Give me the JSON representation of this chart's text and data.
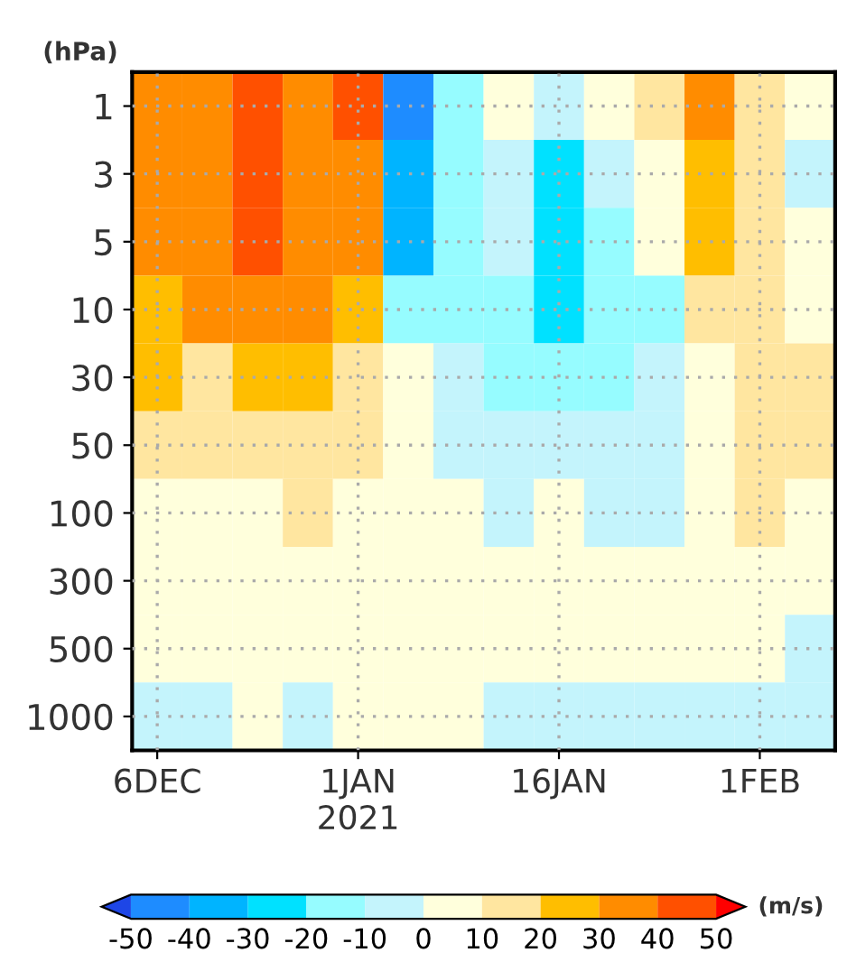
{
  "chart_data": {
    "type": "heatmap",
    "ylabel": "(hPa)",
    "clabel": "(m/s)",
    "categories": [
      "6DEC",
      null,
      null,
      null,
      "1JAN\n2021",
      null,
      null,
      null,
      "16JAN",
      null,
      null,
      null,
      "1FEB",
      null
    ],
    "y_categories": [
      "1",
      "3",
      "5",
      "10",
      "30",
      "50",
      "100",
      "300",
      "500",
      "1000"
    ],
    "cells": [
      [
        35,
        35,
        45,
        35,
        45,
        -45,
        -15,
        5,
        -5,
        5,
        15,
        35,
        15,
        5
      ],
      [
        35,
        35,
        45,
        35,
        35,
        -35,
        -15,
        -5,
        -25,
        -5,
        5,
        25,
        15,
        -5
      ],
      [
        35,
        35,
        45,
        35,
        35,
        -35,
        -15,
        -5,
        -25,
        -15,
        5,
        25,
        15,
        5
      ],
      [
        25,
        35,
        35,
        35,
        25,
        -15,
        -15,
        -15,
        -25,
        -15,
        -15,
        15,
        15,
        5
      ],
      [
        25,
        15,
        25,
        25,
        15,
        5,
        -5,
        -15,
        -15,
        -15,
        -5,
        5,
        15,
        15
      ],
      [
        15,
        15,
        15,
        15,
        15,
        5,
        -5,
        -5,
        -5,
        -5,
        -5,
        5,
        15,
        15
      ],
      [
        5,
        5,
        5,
        15,
        5,
        5,
        5,
        -5,
        5,
        -5,
        -5,
        5,
        15,
        5
      ],
      [
        5,
        5,
        5,
        5,
        5,
        5,
        5,
        5,
        5,
        5,
        5,
        5,
        5,
        5
      ],
      [
        5,
        5,
        5,
        5,
        5,
        5,
        5,
        5,
        5,
        5,
        5,
        5,
        5,
        -5
      ],
      [
        -5,
        -5,
        5,
        -5,
        5,
        5,
        5,
        -5,
        -5,
        -5,
        -5,
        -5,
        -5,
        -5
      ]
    ],
    "cticks": [
      -50,
      -40,
      -30,
      -20,
      -10,
      0,
      10,
      20,
      30,
      40,
      50
    ],
    "colors": [
      "#1e46e6",
      "#1e8cff",
      "#00b4ff",
      "#00e1ff",
      "#96fcff",
      "#c4f4fc",
      "#ffffdc",
      "#ffe6a0",
      "#ffbe00",
      "#ff8c00",
      "#ff5000",
      "#ff0000"
    ],
    "grid": true
  }
}
